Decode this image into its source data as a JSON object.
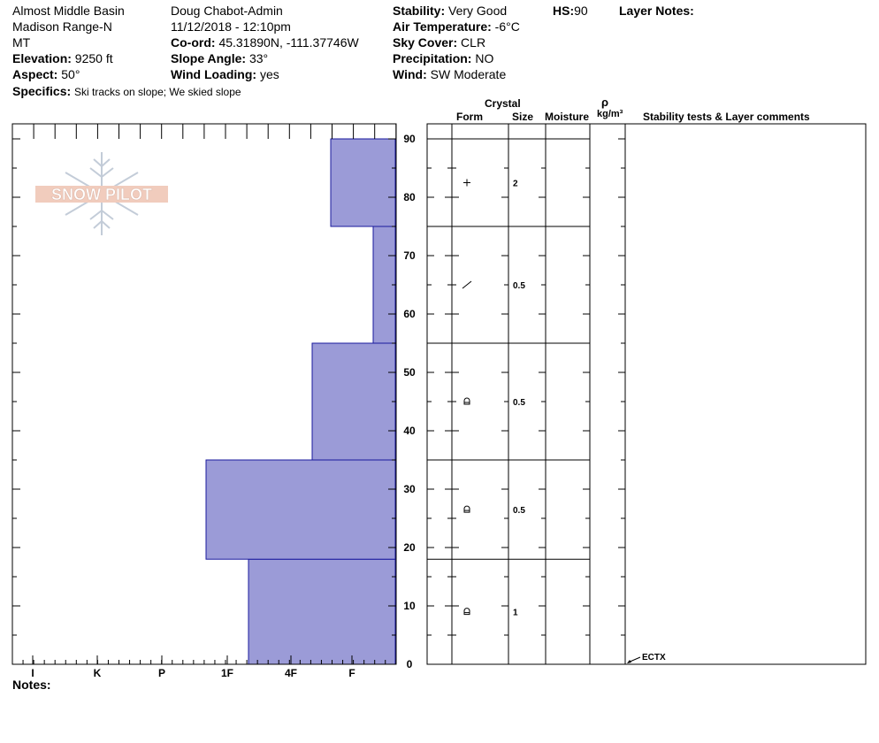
{
  "header": {
    "location_name": "Almost Middle Basin",
    "range": "Madison Range-N",
    "state": "MT",
    "elevation": {
      "label": "Elevation:",
      "value": "9250 ft"
    },
    "aspect": {
      "label": "Aspect:",
      "value": "50°"
    },
    "observer": "Doug Chabot-Admin",
    "datetime": "11/12/2018 - 12:10pm",
    "coord": {
      "label": "Co-ord:",
      "value": "45.31890N, -111.37746W"
    },
    "slope_angle": {
      "label": "Slope Angle:",
      "value": "33°"
    },
    "wind_loading": {
      "label": "Wind Loading:",
      "value": "yes"
    },
    "stability": {
      "label": "Stability:",
      "value": "Very Good"
    },
    "air_temp": {
      "label": "Air Temperature:",
      "value": "-6°C"
    },
    "sky_cover": {
      "label": "Sky Cover:",
      "value": "CLR"
    },
    "precipitation": {
      "label": "Precipitation:",
      "value": "NO"
    },
    "wind": {
      "label": "Wind:",
      "value": "SW Moderate"
    },
    "hs": {
      "label": "HS:",
      "value": "90"
    },
    "layer_notes_label": "Layer Notes:",
    "specifics": {
      "label": "Specifics:",
      "value": "Ski tracks on slope; We skied slope"
    }
  },
  "logo_text": "SNOW PILOT",
  "notes_label": "Notes:",
  "columns": {
    "crystal": "Crystal",
    "form": "Form",
    "size": "Size",
    "moisture": "Moisture",
    "rho": "ρ",
    "density_unit": "kg/m³",
    "stability_comments": "Stability tests & Layer comments"
  },
  "colors": {
    "hardness_fill": "#9b9bd7",
    "hardness_stroke": "#1a1a9e"
  },
  "chart_data": {
    "type": "bar",
    "orientation": "horizontal step profile",
    "x_categories": [
      "I",
      "K",
      "P",
      "1F",
      "4F",
      "F"
    ],
    "y_ticks": [
      0,
      10,
      20,
      30,
      40,
      50,
      60,
      70,
      80,
      90
    ],
    "ylim": [
      0,
      90
    ],
    "layers": [
      {
        "bottom": 0,
        "top": 18,
        "hardness": "1F+",
        "form": "crystal-rounded-icon",
        "size": "1"
      },
      {
        "bottom": 18,
        "top": 35,
        "hardness": "1F-",
        "form": "crystal-rounded-icon",
        "size": "0.5"
      },
      {
        "bottom": 35,
        "top": 55,
        "hardness": "4F+",
        "form": "crystal-rounded-icon",
        "size": "0.5"
      },
      {
        "bottom": 55,
        "top": 75,
        "hardness": "F+",
        "form": "crystal-decomposing-icon",
        "size": "0.5"
      },
      {
        "bottom": 75,
        "top": 90,
        "hardness": "F-",
        "form": "crystal-precip-icon",
        "size": "2"
      }
    ],
    "stability_tests": [
      {
        "height": 0,
        "label": "ECTX"
      }
    ]
  }
}
